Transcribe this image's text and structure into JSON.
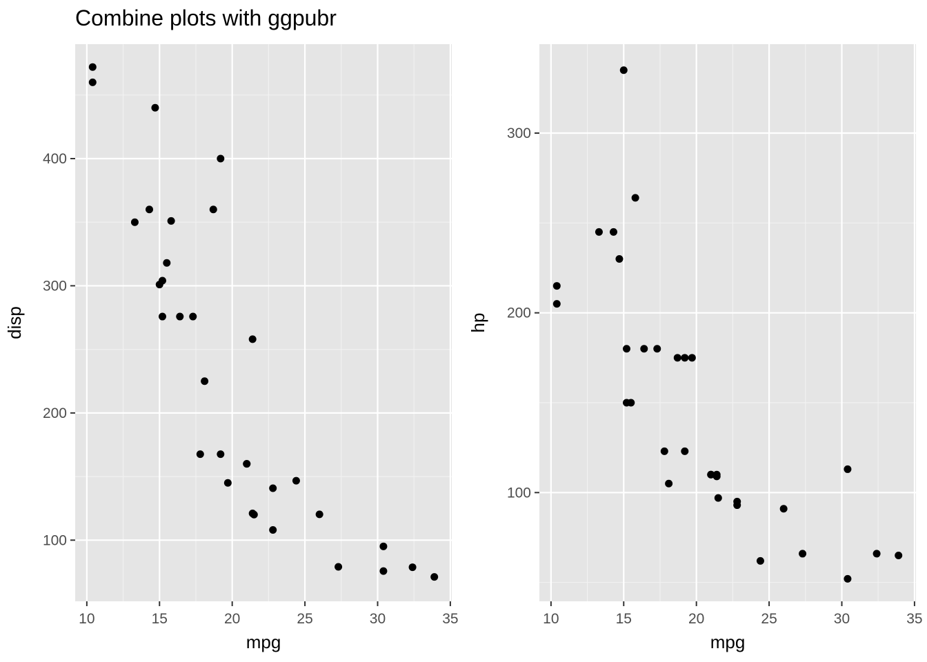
{
  "title": "Combine plots with ggpubr",
  "colors": {
    "panel_background": "#e5e5e5",
    "grid_major": "#ffffff",
    "grid_minor": "#f2f2f2",
    "point": "#000000",
    "tick_label": "#4d4d4d"
  },
  "chart_data": [
    {
      "type": "scatter",
      "title": "Combine plots with ggpubr",
      "xlabel": "mpg",
      "ylabel": "disp",
      "xlim": [
        9.2,
        35.1
      ],
      "ylim": [
        51.9,
        490.0
      ],
      "xticks": [
        10,
        15,
        20,
        25,
        30,
        35
      ],
      "xtick_labels": [
        "10",
        "15",
        "20",
        "25",
        "30",
        "35"
      ],
      "yticks": [
        100,
        200,
        300,
        400
      ],
      "ytick_labels": [
        "100",
        "200",
        "300",
        "400"
      ],
      "grid": true,
      "points": [
        {
          "x": 21.0,
          "y": 160
        },
        {
          "x": 21.0,
          "y": 160
        },
        {
          "x": 22.8,
          "y": 108
        },
        {
          "x": 21.4,
          "y": 258
        },
        {
          "x": 18.7,
          "y": 360
        },
        {
          "x": 18.1,
          "y": 225
        },
        {
          "x": 14.3,
          "y": 360
        },
        {
          "x": 24.4,
          "y": 146.7
        },
        {
          "x": 22.8,
          "y": 140.8
        },
        {
          "x": 19.2,
          "y": 167.6
        },
        {
          "x": 17.8,
          "y": 167.6
        },
        {
          "x": 16.4,
          "y": 275.8
        },
        {
          "x": 17.3,
          "y": 275.8
        },
        {
          "x": 15.2,
          "y": 275.8
        },
        {
          "x": 10.4,
          "y": 472
        },
        {
          "x": 10.4,
          "y": 460
        },
        {
          "x": 14.7,
          "y": 440
        },
        {
          "x": 32.4,
          "y": 78.7
        },
        {
          "x": 30.4,
          "y": 75.7
        },
        {
          "x": 33.9,
          "y": 71.1
        },
        {
          "x": 21.5,
          "y": 120.1
        },
        {
          "x": 15.5,
          "y": 318
        },
        {
          "x": 15.2,
          "y": 304
        },
        {
          "x": 13.3,
          "y": 350
        },
        {
          "x": 19.2,
          "y": 400
        },
        {
          "x": 27.3,
          "y": 79
        },
        {
          "x": 26.0,
          "y": 120.3
        },
        {
          "x": 30.4,
          "y": 95.1
        },
        {
          "x": 15.8,
          "y": 351
        },
        {
          "x": 19.7,
          "y": 145
        },
        {
          "x": 15.0,
          "y": 301
        },
        {
          "x": 21.4,
          "y": 121
        }
      ]
    },
    {
      "type": "scatter",
      "xlabel": "mpg",
      "ylabel": "hp",
      "xlim": [
        9.2,
        35.1
      ],
      "ylim": [
        39.5,
        349.5
      ],
      "xticks": [
        10,
        15,
        20,
        25,
        30,
        35
      ],
      "xtick_labels": [
        "10",
        "15",
        "20",
        "25",
        "30",
        "35"
      ],
      "yticks": [
        100,
        200,
        300
      ],
      "ytick_labels": [
        "100",
        "200",
        "300"
      ],
      "grid": true,
      "points": [
        {
          "x": 21.0,
          "y": 110
        },
        {
          "x": 21.0,
          "y": 110
        },
        {
          "x": 22.8,
          "y": 93
        },
        {
          "x": 21.4,
          "y": 110
        },
        {
          "x": 18.7,
          "y": 175
        },
        {
          "x": 18.1,
          "y": 105
        },
        {
          "x": 14.3,
          "y": 245
        },
        {
          "x": 24.4,
          "y": 62
        },
        {
          "x": 22.8,
          "y": 95
        },
        {
          "x": 19.2,
          "y": 123
        },
        {
          "x": 17.8,
          "y": 123
        },
        {
          "x": 16.4,
          "y": 180
        },
        {
          "x": 17.3,
          "y": 180
        },
        {
          "x": 15.2,
          "y": 180
        },
        {
          "x": 10.4,
          "y": 205
        },
        {
          "x": 10.4,
          "y": 215
        },
        {
          "x": 14.7,
          "y": 230
        },
        {
          "x": 32.4,
          "y": 66
        },
        {
          "x": 30.4,
          "y": 52
        },
        {
          "x": 33.9,
          "y": 65
        },
        {
          "x": 21.5,
          "y": 97
        },
        {
          "x": 15.5,
          "y": 150
        },
        {
          "x": 15.2,
          "y": 150
        },
        {
          "x": 13.3,
          "y": 245
        },
        {
          "x": 19.2,
          "y": 175
        },
        {
          "x": 27.3,
          "y": 66
        },
        {
          "x": 26.0,
          "y": 91
        },
        {
          "x": 30.4,
          "y": 113
        },
        {
          "x": 15.8,
          "y": 264
        },
        {
          "x": 19.7,
          "y": 175
        },
        {
          "x": 15.0,
          "y": 335
        },
        {
          "x": 21.4,
          "y": 109
        }
      ]
    }
  ]
}
